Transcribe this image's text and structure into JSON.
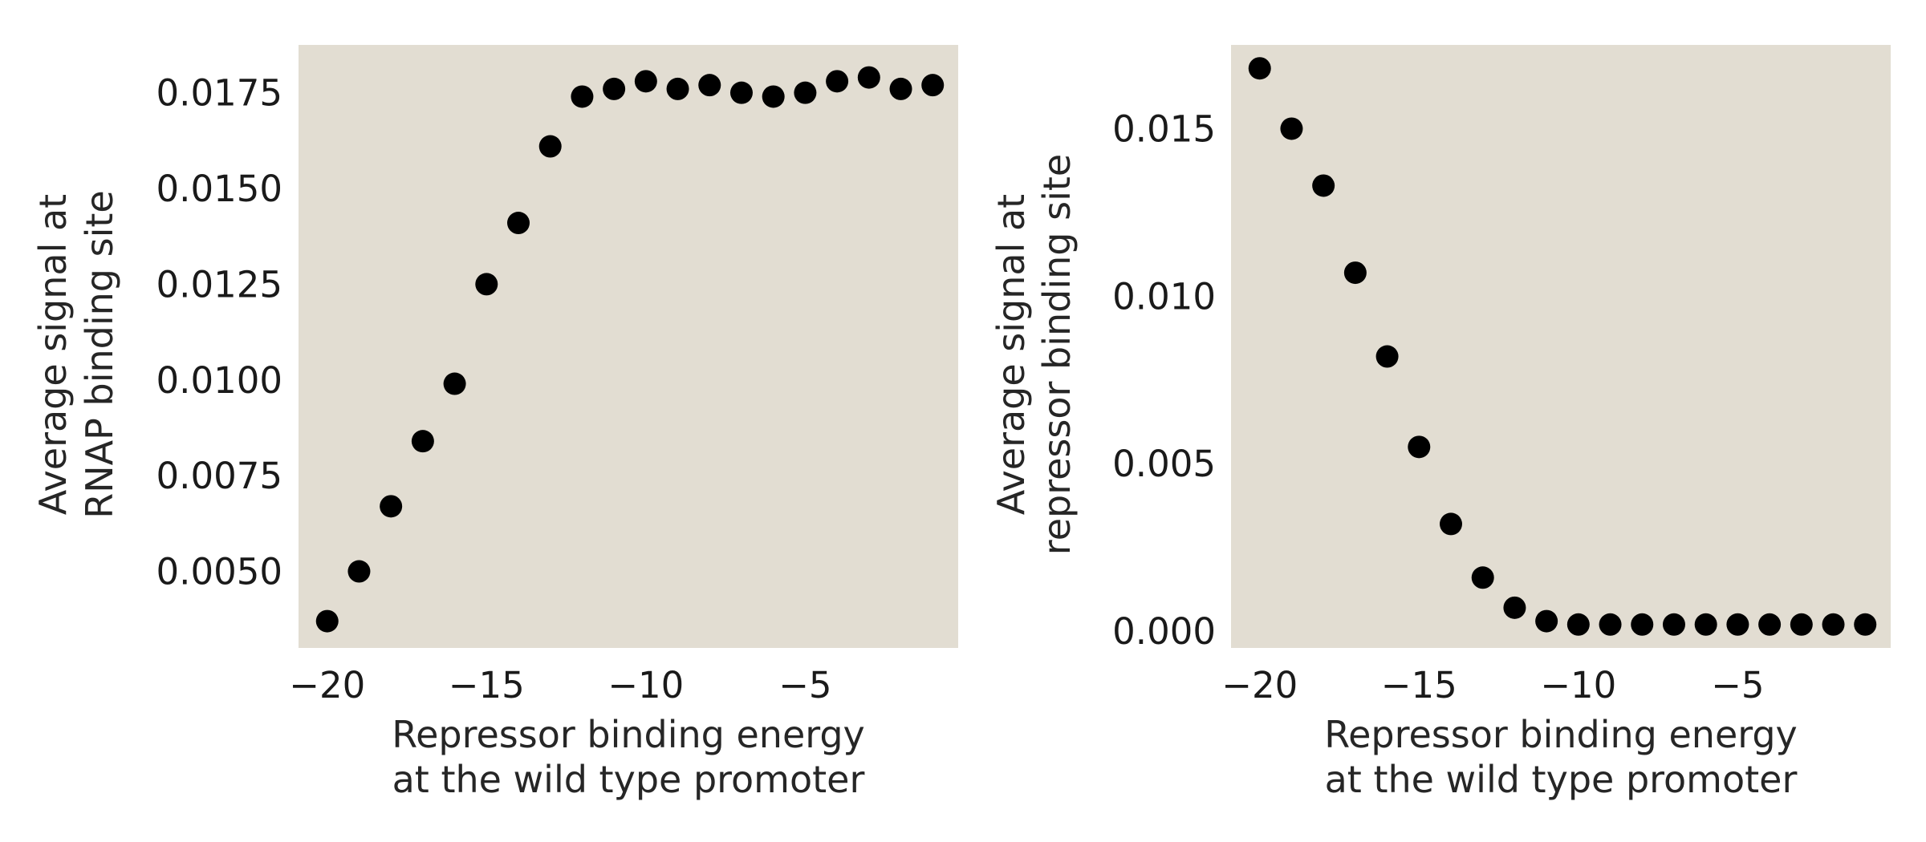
{
  "colors": {
    "plot_background": "#e2ddd2",
    "marker": "#000000",
    "text": "#1a1a1a"
  },
  "chart_data": [
    {
      "type": "scatter",
      "title": "",
      "xlabel": [
        "Repressor binding energy",
        "at the wild type promoter"
      ],
      "ylabel": [
        "Average signal at",
        "RNAP binding site"
      ],
      "xlim": [
        -20.9,
        -0.2
      ],
      "ylim": [
        0.003,
        0.01875
      ],
      "grid": false,
      "x_ticks": [
        -20,
        -15,
        -10,
        -5
      ],
      "x_tick_labels": [
        "−20",
        "−15",
        "−10",
        "−5"
      ],
      "y_ticks": [
        0.005,
        0.0075,
        0.01,
        0.0125,
        0.015,
        0.0175
      ],
      "y_tick_labels": [
        "0.0050",
        "0.0075",
        "0.0100",
        "0.0125",
        "0.0150",
        "0.0175"
      ],
      "series": [
        {
          "x": [
            -20,
            -19,
            -18,
            -17,
            -16,
            -15,
            -14,
            -13,
            -12,
            -11,
            -10,
            -9,
            -8,
            -7,
            -6,
            -5,
            -4,
            -3,
            -2,
            -1
          ],
          "y": [
            0.0037,
            0.005,
            0.0067,
            0.0084,
            0.0099,
            0.0125,
            0.0141,
            0.0161,
            0.0174,
            0.0176,
            0.0178,
            0.0176,
            0.0177,
            0.0175,
            0.0174,
            0.0175,
            0.0178,
            0.0179,
            0.0176,
            0.0177
          ]
        }
      ]
    },
    {
      "type": "scatter",
      "title": "",
      "xlabel": [
        "Repressor binding energy",
        "at the wild type promoter"
      ],
      "ylabel": [
        "Average signal at",
        "repressor binding site"
      ],
      "xlim": [
        -20.9,
        -0.2
      ],
      "ylim": [
        -0.0005,
        0.0175
      ],
      "grid": false,
      "x_ticks": [
        -20,
        -15,
        -10,
        -5
      ],
      "x_tick_labels": [
        "−20",
        "−15",
        "−10",
        "−5"
      ],
      "y_ticks": [
        0.0,
        0.005,
        0.01,
        0.015
      ],
      "y_tick_labels": [
        "0.000",
        "0.005",
        "0.010",
        "0.015"
      ],
      "series": [
        {
          "x": [
            -20,
            -19,
            -18,
            -17,
            -16,
            -15,
            -14,
            -13,
            -12,
            -11,
            -10,
            -9,
            -8,
            -7,
            -6,
            -5,
            -4,
            -3,
            -2,
            -1
          ],
          "y": [
            0.0168,
            0.015,
            0.0133,
            0.0107,
            0.0082,
            0.0055,
            0.0032,
            0.0016,
            0.0007,
            0.0003,
            0.0002,
            0.0002,
            0.0002,
            0.0002,
            0.0002,
            0.0002,
            0.0002,
            0.0002,
            0.0002,
            0.0002
          ]
        }
      ]
    }
  ]
}
